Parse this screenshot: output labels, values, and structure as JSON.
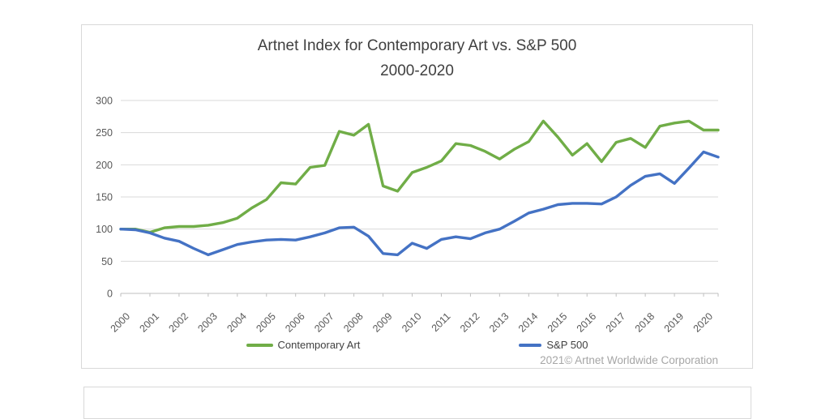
{
  "page": {
    "background": "#FFFFFF"
  },
  "chart": {
    "title_line1": "Artnet Index for Contemporary Art vs. S&P 500",
    "title_line2": "2000-2020",
    "copyright": "2021© Artnet Worldwide Corporation",
    "border_color": "#D9D9D9"
  },
  "chart_data": {
    "type": "line",
    "title": "Artnet Index for Contemporary Art vs. S&P 500 2000-2020",
    "x_start": 2000,
    "x_step": 0.5,
    "points_per_year": 2,
    "x_labels_years": [
      "2000",
      "2001",
      "2002",
      "2003",
      "2004",
      "2005",
      "2006",
      "2007",
      "2008",
      "2009",
      "2010",
      "2011",
      "2012",
      "2013",
      "2014",
      "2015",
      "2016",
      "2017",
      "2018",
      "2019",
      "2020"
    ],
    "y_ticks": [
      0,
      50,
      100,
      150,
      200,
      250,
      300
    ],
    "ylim": [
      0,
      300
    ],
    "grid": "horizontal-only",
    "legend_position": "bottom",
    "colors": {
      "grid": "#D9D9D9",
      "axis": "#BFBFBF",
      "tick_label": "#595959"
    },
    "series": [
      {
        "name": "Contemporary Art",
        "color": "#70AD47",
        "values": [
          100,
          100,
          95,
          102,
          104,
          104,
          106,
          110,
          117,
          133,
          146,
          172,
          170,
          196,
          199,
          252,
          246,
          263,
          167,
          159,
          188,
          196,
          206,
          233,
          230,
          221,
          209,
          224,
          236,
          268,
          243,
          215,
          233,
          205,
          235,
          241,
          227,
          260,
          265,
          268,
          254,
          254
        ]
      },
      {
        "name": "S&P 500",
        "color": "#4472C4",
        "values": [
          100,
          99,
          94,
          86,
          81,
          70,
          60,
          68,
          76,
          80,
          83,
          84,
          83,
          88,
          94,
          102,
          103,
          89,
          62,
          60,
          78,
          70,
          84,
          88,
          85,
          94,
          100,
          112,
          125,
          131,
          138,
          140,
          140,
          139,
          150,
          168,
          182,
          186,
          171,
          195,
          220,
          212
        ]
      }
    ]
  }
}
